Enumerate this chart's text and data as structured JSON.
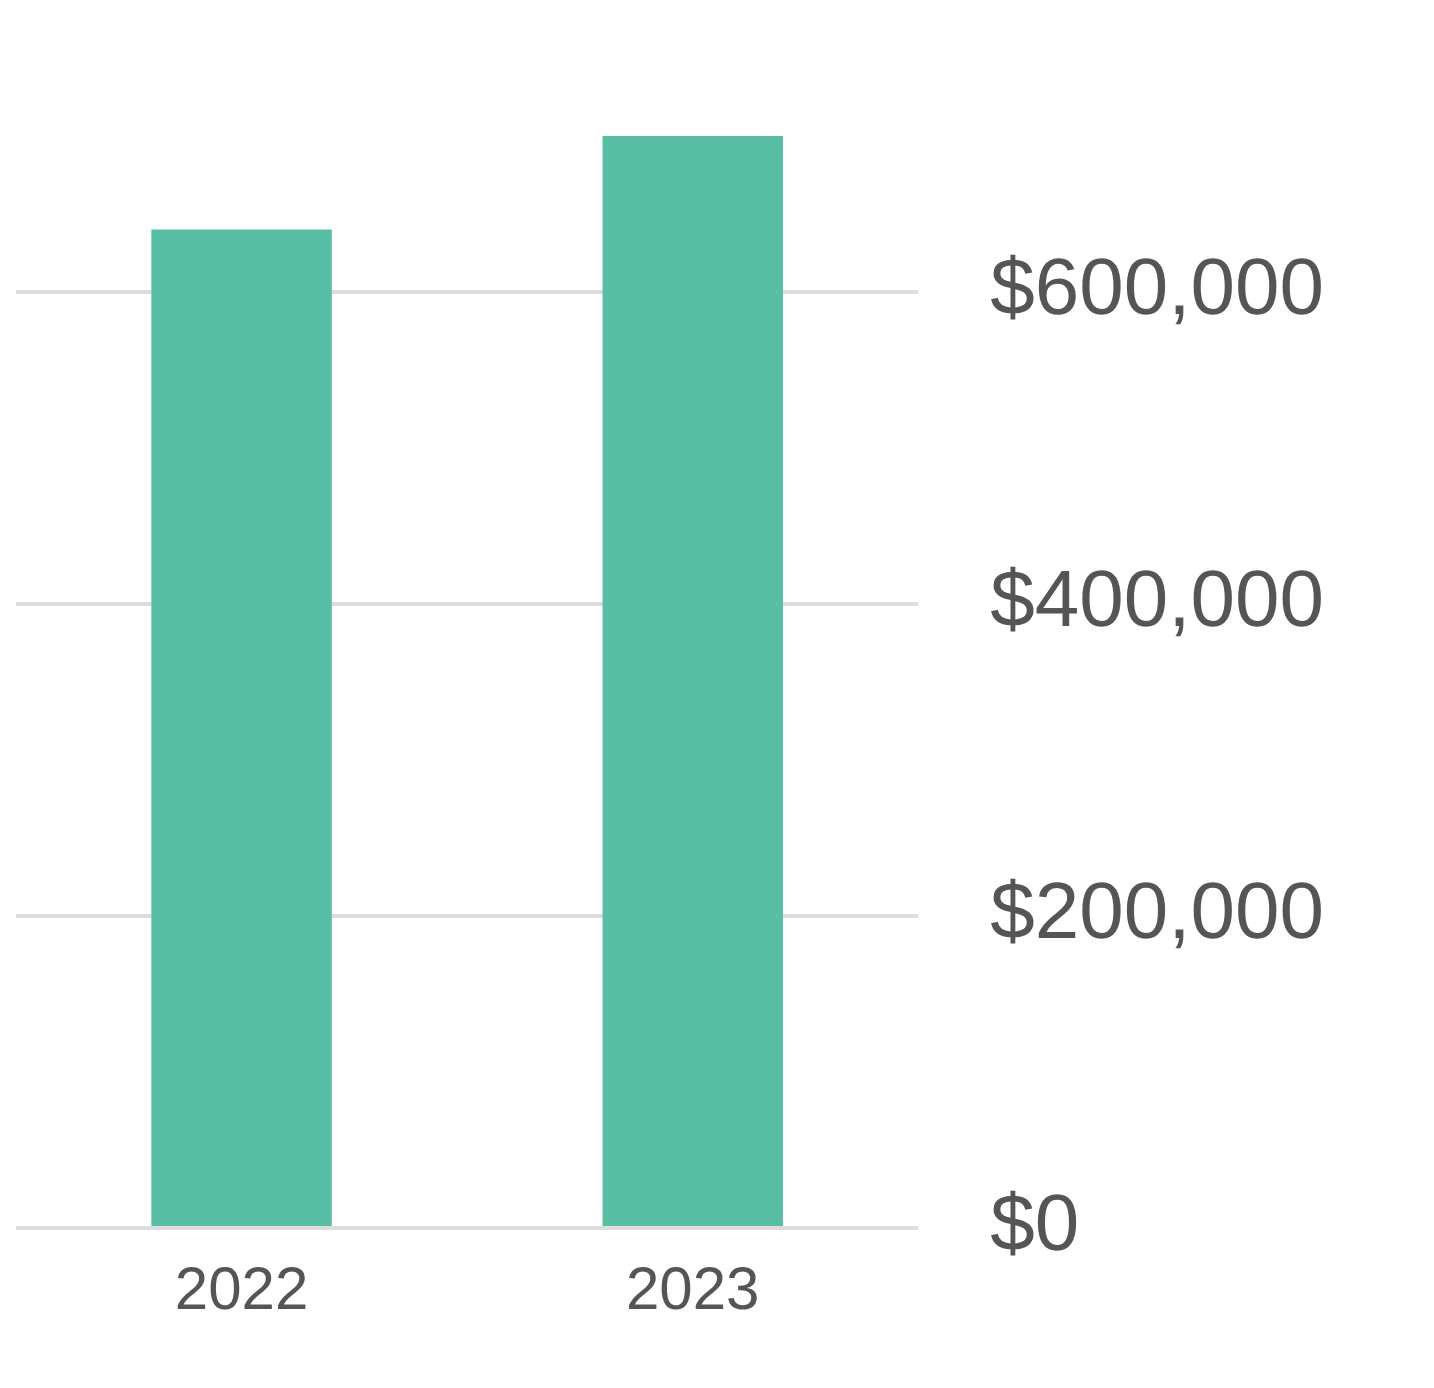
{
  "chart_data": {
    "type": "bar",
    "categories": [
      "2022",
      "2023"
    ],
    "values": [
      640000,
      700000
    ],
    "color": "#58bfa4",
    "ylim": [
      0,
      700000
    ],
    "yticks": [
      {
        "value": 0,
        "label": "$0"
      },
      {
        "value": 200000,
        "label": "$200,000"
      },
      {
        "value": 400000,
        "label": "$400,000"
      },
      {
        "value": 600000,
        "label": "$600,000"
      }
    ],
    "grid": "y",
    "legend": false
  }
}
